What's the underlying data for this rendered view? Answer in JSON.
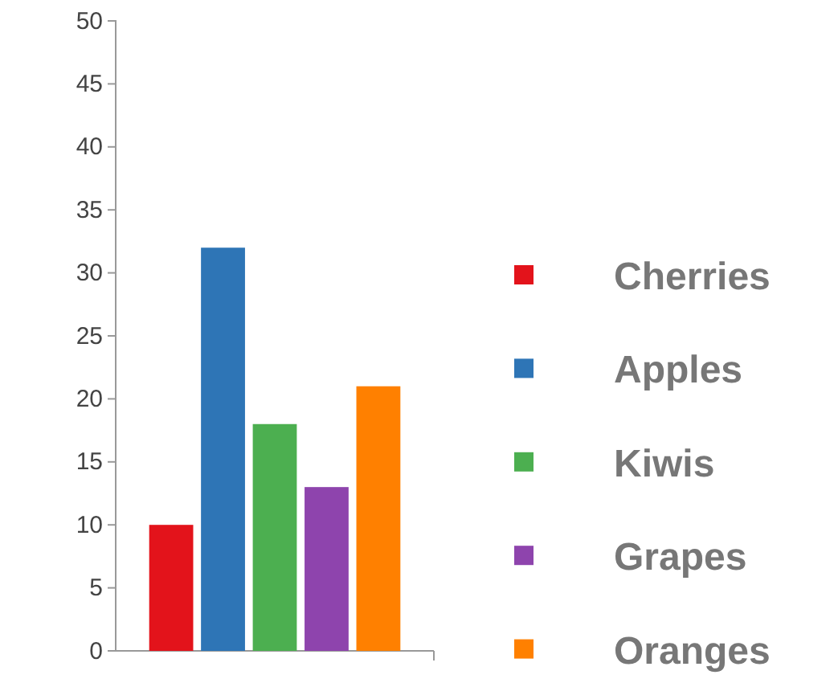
{
  "chart_data": {
    "type": "bar",
    "categories": [
      null
    ],
    "series": [
      {
        "name": "Cherries",
        "color": "#e3131b",
        "values": [
          10
        ]
      },
      {
        "name": "Apples",
        "color": "#2e75b6",
        "values": [
          32
        ]
      },
      {
        "name": "Kiwis",
        "color": "#4caf50",
        "values": [
          18
        ]
      },
      {
        "name": "Grapes",
        "color": "#8e44ad",
        "values": [
          13
        ]
      },
      {
        "name": "Oranges",
        "color": "#ff8000",
        "values": [
          21
        ]
      }
    ],
    "ylim": [
      0,
      50
    ],
    "yticks": [
      0,
      5,
      10,
      15,
      20,
      25,
      30,
      35,
      40,
      45,
      50
    ],
    "legend": "right"
  }
}
